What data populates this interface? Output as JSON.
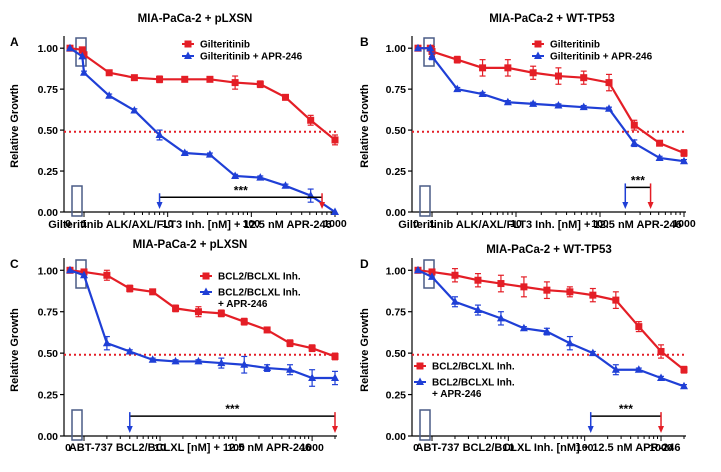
{
  "colors": {
    "series1": "#e41e26",
    "series2": "#1f3fd6",
    "reference": "#e41e26",
    "box": "#4a5c86",
    "axis": "#000000"
  },
  "chart_data": [
    {
      "type": "line",
      "label": "A",
      "title": "MIA-PaCa-2 + pLXSN",
      "xlabel": "Gilteritinib ALK/AXL/FLT3 Inh. [nM] + 12.5 nM APR-246",
      "ylabel": "Relative Growth",
      "xscale": "log",
      "xlim": [
        1,
        1000
      ],
      "ylim": [
        0,
        1.05
      ],
      "xticks": [
        {
          "v": 1,
          "label": "1"
        },
        {
          "v": 10,
          "label": "10"
        },
        {
          "v": 100,
          "label": "100"
        },
        {
          "v": 1000,
          "label": "1000"
        }
      ],
      "zero_label": "0",
      "yticks": [
        {
          "v": 0,
          "label": "0.00"
        },
        {
          "v": 0.25,
          "label": "0.25"
        },
        {
          "v": 0.5,
          "label": "0.50"
        },
        {
          "v": 0.75,
          "label": "0.75"
        },
        {
          "v": 1,
          "label": "1.00"
        }
      ],
      "reference_y": 0.49,
      "legend": {
        "position": "top-right",
        "entries": [
          "Gilteritinib",
          "Gilteritinib + APR-246"
        ]
      },
      "series": [
        {
          "name": "Gilteritinib",
          "marker": "square",
          "x": [
            0,
            0.5,
            1,
            2,
            4,
            8,
            16,
            32,
            64,
            128,
            256,
            512,
            1000
          ],
          "values": [
            1.0,
            0.99,
            0.96,
            0.85,
            0.82,
            0.81,
            0.81,
            0.81,
            0.79,
            0.78,
            0.7,
            0.56,
            0.44
          ],
          "err": [
            0,
            0,
            0.01,
            0.01,
            0.01,
            0.02,
            0.01,
            0.01,
            0.04,
            0.02,
            0.01,
            0.03,
            0.03
          ]
        },
        {
          "name": "Gilteritinib + APR-246",
          "marker": "triangle",
          "x": [
            0,
            0.5,
            1,
            2,
            4,
            8,
            16,
            32,
            64,
            128,
            256,
            512,
            1000
          ],
          "values": [
            1.0,
            0.95,
            0.85,
            0.71,
            0.62,
            0.47,
            0.36,
            0.35,
            0.22,
            0.21,
            0.16,
            0.1,
            0.0
          ],
          "err": [
            0,
            0,
            0.01,
            0.01,
            0.01,
            0.03,
            0.01,
            0.01,
            0.01,
            0.01,
            0.01,
            0.04,
            0.0
          ]
        }
      ],
      "significance": {
        "label": "***",
        "x1": 8,
        "x2": 700,
        "y": 0.09
      }
    },
    {
      "type": "line",
      "label": "B",
      "title": "MIA-PaCa-2 + WT-TP53",
      "xlabel": "Gilteritinib ALK/AXL/FLT3 Inh. [nM] + 12.5 nM APR-246",
      "ylabel": "Relative Growth",
      "xscale": "log",
      "xlim": [
        1,
        1000
      ],
      "ylim": [
        0,
        1.05
      ],
      "xticks": [
        {
          "v": 1,
          "label": "1"
        },
        {
          "v": 10,
          "label": "10"
        },
        {
          "v": 100,
          "label": "100"
        },
        {
          "v": 1000,
          "label": "1000"
        }
      ],
      "zero_label": "0",
      "yticks": [
        {
          "v": 0,
          "label": "0.00"
        },
        {
          "v": 0.25,
          "label": "0.25"
        },
        {
          "v": 0.5,
          "label": "0.50"
        },
        {
          "v": 0.75,
          "label": "0.75"
        },
        {
          "v": 1,
          "label": "1.00"
        }
      ],
      "reference_y": 0.49,
      "legend": {
        "position": "top-right",
        "entries": [
          "Gilteritinib",
          "Gilteritinib + APR-246"
        ]
      },
      "series": [
        {
          "name": "Gilteritinib",
          "marker": "square",
          "x": [
            0,
            0.5,
            1,
            2,
            4,
            8,
            16,
            32,
            64,
            128,
            256,
            512,
            1000
          ],
          "values": [
            1.0,
            1.0,
            0.98,
            0.93,
            0.88,
            0.88,
            0.85,
            0.83,
            0.82,
            0.79,
            0.53,
            0.42,
            0.36
          ],
          "err": [
            0,
            0,
            0.03,
            0.02,
            0.05,
            0.05,
            0.04,
            0.05,
            0.04,
            0.05,
            0.03,
            0.01,
            0.02
          ]
        },
        {
          "name": "Gilteritinib + APR-246",
          "marker": "triangle",
          "x": [
            0,
            0.5,
            1,
            2,
            4,
            8,
            16,
            32,
            64,
            128,
            256,
            512,
            1000
          ],
          "values": [
            1.0,
            1.0,
            0.95,
            0.75,
            0.72,
            0.67,
            0.66,
            0.65,
            0.64,
            0.63,
            0.42,
            0.33,
            0.31
          ],
          "err": [
            0,
            0,
            0.02,
            0.01,
            0.01,
            0.01,
            0.01,
            0.01,
            0.01,
            0.01,
            0.02,
            0.01,
            0.01
          ]
        }
      ],
      "significance": {
        "label": "***",
        "x1": 200,
        "x2": 400,
        "y": 0.15
      }
    },
    {
      "type": "line",
      "label": "C",
      "title": "MIA-PaCa-2 + pLXSN",
      "xlabel": "ABT-737 BCL2/BCLXL [nM] + 12.5 nM APR-246",
      "ylabel": "Relative Growth",
      "xscale": "log",
      "xlim": [
        1,
        2000
      ],
      "ylim": [
        0,
        1.05
      ],
      "xticks": [
        {
          "v": 10,
          "label": "10"
        },
        {
          "v": 100,
          "label": "100"
        },
        {
          "v": 1000,
          "label": "1000"
        }
      ],
      "zero_label": "0",
      "yticks": [
        {
          "v": 0,
          "label": "0.00"
        },
        {
          "v": 0.25,
          "label": "0.25"
        },
        {
          "v": 0.5,
          "label": "0.50"
        },
        {
          "v": 0.75,
          "label": "0.75"
        },
        {
          "v": 1,
          "label": "1.00"
        }
      ],
      "reference_y": 0.49,
      "legend": {
        "position": "top-right",
        "entries": [
          "BCL2/BCLXL Inh.",
          "BCL2/BCLXL Inh.",
          "+ APR-246"
        ]
      },
      "series": [
        {
          "name": "BCL2/BCLXL Inh.",
          "marker": "square",
          "x": [
            0,
            1,
            2,
            4,
            8,
            16,
            32,
            64,
            128,
            256,
            512,
            1000,
            2000
          ],
          "values": [
            1.0,
            0.99,
            0.97,
            0.89,
            0.87,
            0.77,
            0.75,
            0.74,
            0.69,
            0.64,
            0.56,
            0.53,
            0.48
          ],
          "err": [
            0,
            0,
            0.03,
            0.02,
            0.01,
            0.02,
            0.03,
            0.02,
            0.02,
            0.01,
            0.02,
            0.02,
            0.02
          ]
        },
        {
          "name": "BCL2/BCLXL Inh. + APR-246",
          "marker": "triangle",
          "x": [
            0,
            1,
            2,
            4,
            8,
            16,
            32,
            64,
            128,
            256,
            512,
            1000,
            2000
          ],
          "values": [
            1.0,
            0.97,
            0.56,
            0.51,
            0.46,
            0.45,
            0.45,
            0.44,
            0.43,
            0.41,
            0.4,
            0.35,
            0.35
          ],
          "err": [
            0,
            0,
            0.04,
            0.01,
            0.01,
            0.01,
            0.01,
            0.03,
            0.05,
            0.02,
            0.03,
            0.05,
            0.04
          ]
        }
      ],
      "significance": {
        "label": "***",
        "x1": 4,
        "x2": 2000,
        "y": 0.12
      }
    },
    {
      "type": "line",
      "label": "D",
      "title": "MIA-PaCa-2 + WT-TP53",
      "xlabel": "ABT-737 BCL2/BCLXL Inh. [nM] + 12.5 nM APR-246",
      "ylabel": "Relative Growth",
      "xscale": "log",
      "xlim": [
        1,
        2000
      ],
      "ylim": [
        0,
        1.05
      ],
      "xticks": [
        {
          "v": 10,
          "label": "10"
        },
        {
          "v": 100,
          "label": "100"
        },
        {
          "v": 1000,
          "label": "1000"
        }
      ],
      "zero_label": "0",
      "yticks": [
        {
          "v": 0,
          "label": "0.00"
        },
        {
          "v": 0.25,
          "label": "0.25"
        },
        {
          "v": 0.5,
          "label": "0.50"
        },
        {
          "v": 0.75,
          "label": "0.75"
        },
        {
          "v": 1,
          "label": "1.00"
        }
      ],
      "reference_y": 0.49,
      "legend": {
        "position": "bottom-left",
        "entries": [
          "BCL2/BCLXL Inh.",
          "BCL2/BCLXL Inh.",
          "+ APR-246"
        ]
      },
      "series": [
        {
          "name": "BCL2/BCLXL Inh.",
          "marker": "square",
          "x": [
            0,
            1,
            2,
            4,
            8,
            16,
            32,
            64,
            128,
            256,
            512,
            1000,
            2000
          ],
          "values": [
            1.0,
            0.99,
            0.97,
            0.94,
            0.92,
            0.9,
            0.88,
            0.87,
            0.85,
            0.82,
            0.66,
            0.51,
            0.4
          ],
          "err": [
            0,
            0,
            0.04,
            0.04,
            0.05,
            0.06,
            0.05,
            0.03,
            0.04,
            0.05,
            0.03,
            0.04,
            0.02
          ]
        },
        {
          "name": "BCL2/BCLXL Inh. + APR-246",
          "marker": "triangle",
          "x": [
            0,
            1,
            2,
            4,
            8,
            16,
            32,
            64,
            128,
            256,
            512,
            1000,
            2000
          ],
          "values": [
            1.0,
            0.96,
            0.81,
            0.76,
            0.71,
            0.65,
            0.63,
            0.56,
            0.5,
            0.4,
            0.4,
            0.35,
            0.3
          ],
          "err": [
            0,
            0,
            0.03,
            0.03,
            0.04,
            0.01,
            0.02,
            0.04,
            0.01,
            0.03,
            0.01,
            0.01,
            0.01
          ]
        }
      ],
      "significance": {
        "label": "***",
        "x1": 120,
        "x2": 1000,
        "y": 0.12
      }
    }
  ]
}
